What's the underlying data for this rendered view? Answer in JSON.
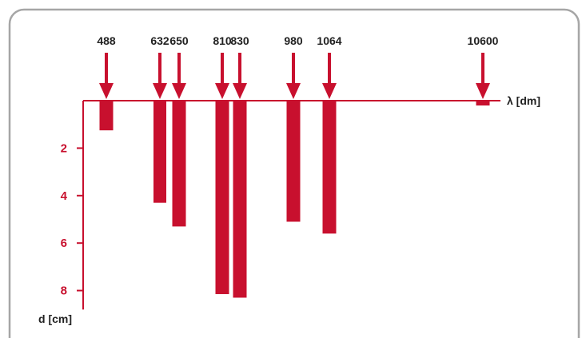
{
  "colors": {
    "bar": "#c8102e",
    "axis": "#c8102e",
    "frame": "#a6a6a6",
    "text": "#222222"
  },
  "chart_data": {
    "type": "bar",
    "title": "",
    "xlabel": "λ [dm]",
    "ylabel": "d [cm]",
    "categories": [
      "488",
      "632",
      "650",
      "810",
      "830",
      "980",
      "1064",
      "10600"
    ],
    "values": [
      1.25,
      4.3,
      5.3,
      8.15,
      8.3,
      5.1,
      5.6,
      0.2
    ],
    "yticks": [
      2,
      4,
      6,
      8
    ],
    "ylim": [
      0,
      8.8
    ],
    "grid": false,
    "legend": "none",
    "y_direction": "downward",
    "markers": "arrows"
  }
}
